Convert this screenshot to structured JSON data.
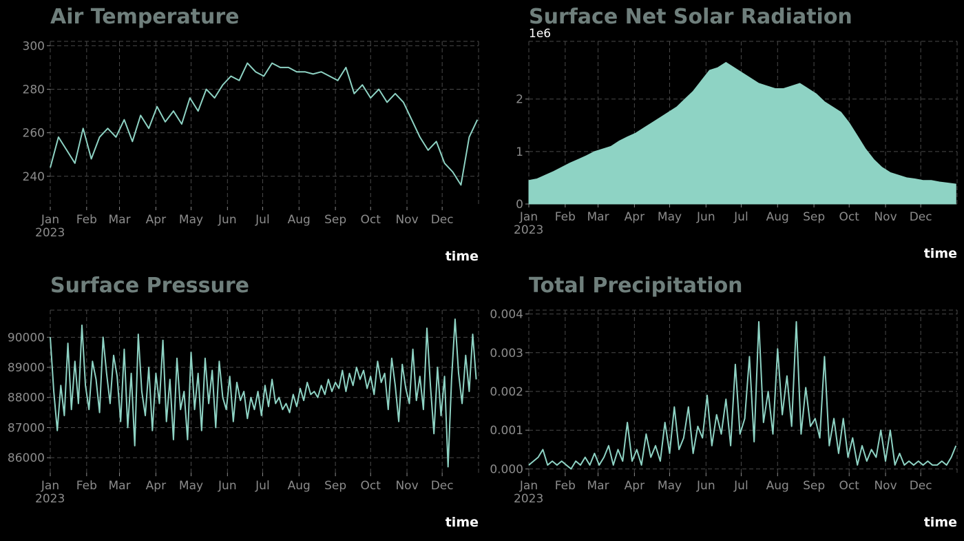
{
  "chart_data": [
    {
      "id": "air",
      "type": "line",
      "title": "Air Temperature",
      "xlabel": "time",
      "ylabel": "",
      "year_label": "2023",
      "offset_label": "",
      "x_ticks": [
        "Jan",
        "Feb",
        "Mar",
        "Apr",
        "May",
        "Jun",
        "Jul",
        "Aug",
        "Sep",
        "Oct",
        "Nov",
        "Dec"
      ],
      "y_ticks": [
        240,
        260,
        280,
        300
      ],
      "ylim": [
        226,
        302
      ],
      "color": "#8ed3c4",
      "series": [
        {
          "x": [
            0,
            7,
            14,
            21,
            28,
            35,
            42,
            49,
            56,
            63,
            70,
            77,
            84,
            91,
            98,
            105,
            112,
            119,
            126,
            133,
            140,
            147,
            154,
            161,
            168,
            175,
            182,
            189,
            196,
            203,
            210,
            217,
            224,
            231,
            238,
            245,
            252,
            259,
            266,
            273,
            280,
            287,
            294,
            301,
            308,
            315,
            322,
            329,
            336,
            343,
            350,
            357,
            364
          ],
          "y": [
            244,
            258,
            252,
            246,
            262,
            248,
            258,
            262,
            258,
            266,
            256,
            268,
            262,
            272,
            265,
            270,
            264,
            276,
            270,
            280,
            276,
            282,
            286,
            284,
            292,
            288,
            286,
            292,
            290,
            290,
            288,
            288,
            287,
            288,
            286,
            284,
            290,
            278,
            282,
            276,
            280,
            274,
            278,
            274,
            266,
            258,
            252,
            256,
            246,
            242,
            236,
            258,
            266
          ]
        }
      ]
    },
    {
      "id": "solar",
      "type": "area",
      "title": "Surface Net Solar Radiation",
      "xlabel": "time",
      "ylabel": "",
      "year_label": "2023",
      "offset_label": "1e6",
      "x_ticks": [
        "Jan",
        "Feb",
        "Mar",
        "Apr",
        "May",
        "Jun",
        "Jul",
        "Aug",
        "Sep",
        "Oct",
        "Nov",
        "Dec"
      ],
      "y_ticks": [
        0,
        1,
        2
      ],
      "ylim": [
        0,
        3.1
      ],
      "color": "#8ed3c4",
      "series": [
        {
          "x": [
            0,
            7,
            14,
            21,
            28,
            35,
            42,
            49,
            56,
            63,
            70,
            77,
            84,
            91,
            98,
            105,
            112,
            119,
            126,
            133,
            140,
            147,
            154,
            161,
            168,
            175,
            182,
            189,
            196,
            203,
            210,
            217,
            224,
            231,
            238,
            245,
            252,
            259,
            266,
            273,
            280,
            287,
            294,
            301,
            308,
            315,
            322,
            329,
            336,
            343,
            350,
            357,
            364
          ],
          "y": [
            0.45,
            0.48,
            0.55,
            0.62,
            0.7,
            0.78,
            0.85,
            0.92,
            1.0,
            1.05,
            1.1,
            1.2,
            1.28,
            1.35,
            1.45,
            1.55,
            1.65,
            1.75,
            1.85,
            2.0,
            2.15,
            2.35,
            2.55,
            2.6,
            2.7,
            2.6,
            2.5,
            2.4,
            2.3,
            2.25,
            2.2,
            2.2,
            2.25,
            2.3,
            2.2,
            2.1,
            1.95,
            1.85,
            1.75,
            1.55,
            1.3,
            1.05,
            0.85,
            0.7,
            0.6,
            0.55,
            0.5,
            0.48,
            0.45,
            0.45,
            0.42,
            0.4,
            0.38
          ]
        }
      ]
    },
    {
      "id": "pressure",
      "type": "line",
      "title": "Surface Pressure",
      "xlabel": "time",
      "ylabel": "",
      "year_label": "2023",
      "offset_label": "",
      "x_ticks": [
        "Jan",
        "Feb",
        "Mar",
        "Apr",
        "May",
        "Jun",
        "Jul",
        "Aug",
        "Sep",
        "Oct",
        "Nov",
        "Dec"
      ],
      "y_ticks": [
        86000,
        87000,
        88000,
        89000,
        90000
      ],
      "ylim": [
        85500,
        90900
      ],
      "color": "#8ed3c4",
      "series": [
        {
          "x": [
            0,
            3,
            6,
            9,
            12,
            15,
            18,
            21,
            24,
            27,
            30,
            33,
            36,
            39,
            42,
            45,
            48,
            51,
            54,
            57,
            60,
            63,
            66,
            69,
            72,
            75,
            78,
            81,
            84,
            87,
            90,
            93,
            96,
            99,
            102,
            105,
            108,
            111,
            114,
            117,
            120,
            123,
            126,
            129,
            132,
            135,
            138,
            141,
            144,
            147,
            150,
            153,
            156,
            159,
            162,
            165,
            168,
            171,
            174,
            177,
            180,
            183,
            186,
            189,
            192,
            195,
            198,
            201,
            204,
            207,
            210,
            213,
            216,
            219,
            222,
            225,
            228,
            231,
            234,
            237,
            240,
            243,
            246,
            249,
            252,
            255,
            258,
            261,
            264,
            267,
            270,
            273,
            276,
            279,
            282,
            285,
            288,
            291,
            294,
            297,
            300,
            303,
            306,
            309,
            312,
            315,
            318,
            321,
            324,
            327,
            330,
            333,
            336,
            339,
            342,
            345,
            348,
            351,
            354,
            357,
            360,
            363
          ],
          "y": [
            90000,
            88200,
            86900,
            88400,
            87400,
            89800,
            87600,
            89200,
            87800,
            90400,
            88400,
            87600,
            89200,
            88600,
            87500,
            90000,
            88800,
            87800,
            89400,
            88700,
            87200,
            89600,
            87000,
            88800,
            86400,
            90100,
            88200,
            87400,
            89000,
            86900,
            88800,
            87800,
            89900,
            87200,
            88600,
            86600,
            89300,
            87600,
            88200,
            86600,
            89500,
            87600,
            88800,
            86900,
            89300,
            87800,
            88900,
            87000,
            89200,
            88000,
            87600,
            88700,
            87200,
            88500,
            87900,
            88200,
            87300,
            88000,
            87600,
            88200,
            87400,
            88400,
            87700,
            88600,
            87800,
            88000,
            87600,
            87800,
            87500,
            88100,
            87700,
            88300,
            87900,
            88500,
            88100,
            88200,
            88000,
            88400,
            88100,
            88600,
            88200,
            88500,
            88300,
            88900,
            88200,
            88800,
            88400,
            89000,
            88600,
            88900,
            88300,
            88700,
            88100,
            89200,
            88500,
            88800,
            87600,
            89300,
            88400,
            87200,
            89100,
            88300,
            87800,
            89600,
            87900,
            88700,
            87600,
            90300,
            88400,
            86800,
            89000,
            87400,
            88700,
            85700,
            88600,
            90600,
            88800,
            87800,
            89400,
            88200,
            90100,
            88600
          ]
        }
      ]
    },
    {
      "id": "precip",
      "type": "line",
      "title": "Total Precipitation",
      "xlabel": "time",
      "ylabel": "",
      "year_label": "2023",
      "offset_label": "",
      "x_ticks": [
        "Jan",
        "Feb",
        "Mar",
        "Apr",
        "May",
        "Jun",
        "Jul",
        "Aug",
        "Sep",
        "Oct",
        "Nov",
        "Dec"
      ],
      "y_ticks": [
        "0.000",
        "0.001",
        "0.002",
        "0.003",
        "0.004"
      ],
      "y_tick_values": [
        0,
        0.001,
        0.002,
        0.003,
        0.004
      ],
      "ylim": [
        -0.0001,
        0.0041
      ],
      "color": "#8ed3c4",
      "series": [
        {
          "x": [
            0,
            4,
            8,
            12,
            16,
            20,
            24,
            28,
            32,
            36,
            40,
            44,
            48,
            52,
            56,
            60,
            64,
            68,
            72,
            76,
            80,
            84,
            88,
            92,
            96,
            100,
            104,
            108,
            112,
            116,
            120,
            124,
            128,
            132,
            136,
            140,
            144,
            148,
            152,
            156,
            160,
            164,
            168,
            172,
            176,
            180,
            184,
            188,
            192,
            196,
            200,
            204,
            208,
            212,
            216,
            220,
            224,
            228,
            232,
            236,
            240,
            244,
            248,
            252,
            256,
            260,
            264,
            268,
            272,
            276,
            280,
            284,
            288,
            292,
            296,
            300,
            304,
            308,
            312,
            316,
            320,
            324,
            328,
            332,
            336,
            340,
            344,
            348,
            352,
            356,
            360,
            364
          ],
          "y": [
            0.0001,
            0.0002,
            0.0003,
            0.0005,
            0.0001,
            0.0002,
            0.0001,
            0.0002,
            0.0001,
            0.0,
            0.0002,
            0.0001,
            0.0003,
            0.0001,
            0.0004,
            0.0001,
            0.0003,
            0.0006,
            0.0001,
            0.0005,
            0.0002,
            0.0012,
            0.0002,
            0.0005,
            0.0001,
            0.0009,
            0.0003,
            0.0006,
            0.0002,
            0.0012,
            0.0004,
            0.0016,
            0.0005,
            0.0008,
            0.0016,
            0.0004,
            0.0011,
            0.0008,
            0.0019,
            0.0006,
            0.0014,
            0.0009,
            0.0018,
            0.0006,
            0.0027,
            0.0009,
            0.0013,
            0.0029,
            0.0007,
            0.0038,
            0.0012,
            0.002,
            0.0009,
            0.0031,
            0.0014,
            0.0024,
            0.0011,
            0.0038,
            0.0009,
            0.0021,
            0.0011,
            0.0013,
            0.0008,
            0.0029,
            0.0006,
            0.0013,
            0.0004,
            0.0013,
            0.0003,
            0.0008,
            0.0001,
            0.0006,
            0.0002,
            0.0005,
            0.0003,
            0.001,
            0.0002,
            0.001,
            0.0001,
            0.0004,
            0.0001,
            0.0002,
            0.0001,
            0.0002,
            0.0001,
            0.0002,
            0.0001,
            0.0001,
            0.0002,
            0.0001,
            0.0003,
            0.0006
          ]
        }
      ]
    }
  ]
}
